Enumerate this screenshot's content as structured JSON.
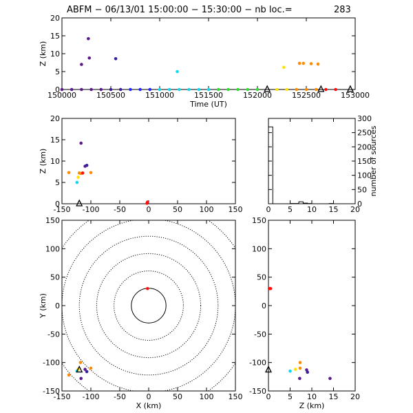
{
  "title": {
    "prefix": "ABFM − 06/13/01 15:00:00 − 15:30:00 − nb loc.=",
    "count": "283"
  },
  "colors": {
    "purple": "#5a1a8c",
    "indigo": "#3a1e9a",
    "blue": "#2424ff",
    "cyan": "#10d8f0",
    "green": "#30e030",
    "yellow": "#ffe000",
    "orange": "#ff8c00",
    "red": "#ff1010"
  },
  "chart_data": [
    {
      "id": "time-height",
      "type": "scatter",
      "xlabel": "Time (UT)",
      "ylabel": "Z (km)",
      "xlim": [
        150000,
        153000
      ],
      "ylim": [
        0,
        20
      ],
      "xticks": [
        150000,
        150500,
        151000,
        151500,
        152000,
        152500,
        153000
      ],
      "yticks": [
        0,
        5,
        10,
        15,
        20
      ],
      "points": [
        {
          "x": 150000,
          "y": 0,
          "c": "purple"
        },
        {
          "x": 150100,
          "y": 0,
          "c": "purple"
        },
        {
          "x": 150200,
          "y": 0,
          "c": "purple"
        },
        {
          "x": 150200,
          "y": 7,
          "c": "purple"
        },
        {
          "x": 150270,
          "y": 14.2,
          "c": "purple"
        },
        {
          "x": 150280,
          "y": 8.8,
          "c": "purple"
        },
        {
          "x": 150300,
          "y": 0,
          "c": "purple"
        },
        {
          "x": 150400,
          "y": 0,
          "c": "purple"
        },
        {
          "x": 150500,
          "y": 0,
          "c": "indigo"
        },
        {
          "x": 150550,
          "y": 8.6,
          "c": "indigo"
        },
        {
          "x": 150600,
          "y": 0,
          "c": "indigo"
        },
        {
          "x": 150700,
          "y": 0,
          "c": "blue"
        },
        {
          "x": 150800,
          "y": 0,
          "c": "blue"
        },
        {
          "x": 150900,
          "y": 0,
          "c": "blue"
        },
        {
          "x": 151000,
          "y": 0,
          "c": "cyan"
        },
        {
          "x": 151100,
          "y": 0,
          "c": "cyan"
        },
        {
          "x": 151180,
          "y": 5,
          "c": "cyan"
        },
        {
          "x": 151200,
          "y": 0,
          "c": "cyan"
        },
        {
          "x": 151300,
          "y": 0,
          "c": "cyan"
        },
        {
          "x": 151400,
          "y": 0,
          "c": "cyan"
        },
        {
          "x": 151500,
          "y": 0,
          "c": "cyan"
        },
        {
          "x": 151600,
          "y": 0,
          "c": "green"
        },
        {
          "x": 151700,
          "y": 0,
          "c": "green"
        },
        {
          "x": 151800,
          "y": 0,
          "c": "green"
        },
        {
          "x": 151900,
          "y": 0,
          "c": "green"
        },
        {
          "x": 152000,
          "y": 0,
          "c": "green"
        },
        {
          "x": 152200,
          "y": 0,
          "c": "yellow"
        },
        {
          "x": 152270,
          "y": 6.2,
          "c": "yellow"
        },
        {
          "x": 152300,
          "y": 0,
          "c": "yellow"
        },
        {
          "x": 152400,
          "y": 0,
          "c": "orange"
        },
        {
          "x": 152430,
          "y": 7.3,
          "c": "orange"
        },
        {
          "x": 152470,
          "y": 7.3,
          "c": "orange"
        },
        {
          "x": 152500,
          "y": 0,
          "c": "orange"
        },
        {
          "x": 152550,
          "y": 7.2,
          "c": "orange"
        },
        {
          "x": 152600,
          "y": 0,
          "c": "orange"
        },
        {
          "x": 152620,
          "y": 7.1,
          "c": "orange"
        },
        {
          "x": 152700,
          "y": 0,
          "c": "red"
        },
        {
          "x": 152800,
          "y": 0,
          "c": "red"
        }
      ],
      "triangles": [
        {
          "x": 152100,
          "y": 0
        },
        {
          "x": 152650,
          "y": 0
        },
        {
          "x": 152950,
          "y": 0
        }
      ]
    },
    {
      "id": "x-height",
      "type": "scatter",
      "xlabel": "",
      "ylabel": "Z (km)",
      "xlim": [
        -150,
        150
      ],
      "ylim": [
        0,
        20
      ],
      "xticks": [
        -150,
        -100,
        -50,
        0,
        50,
        100,
        150
      ],
      "yticks": [
        0,
        5,
        10,
        15,
        20
      ],
      "points": [
        {
          "x": -117,
          "y": 14.2,
          "c": "purple"
        },
        {
          "x": -110,
          "y": 8.8,
          "c": "purple"
        },
        {
          "x": -107,
          "y": 9.0,
          "c": "indigo"
        },
        {
          "x": -124,
          "y": 5,
          "c": "cyan"
        },
        {
          "x": -122,
          "y": 6.2,
          "c": "yellow"
        },
        {
          "x": -138,
          "y": 7.3,
          "c": "orange"
        },
        {
          "x": -120,
          "y": 7.2,
          "c": "orange"
        },
        {
          "x": -117,
          "y": 7.1,
          "c": "orange"
        },
        {
          "x": -100,
          "y": 7.3,
          "c": "orange"
        },
        {
          "x": -114,
          "y": 7.2,
          "c": "red"
        },
        {
          "x": -3,
          "y": 0.1,
          "c": "red"
        },
        {
          "x": -2,
          "y": 0.4,
          "c": "red"
        }
      ],
      "triangles": [
        {
          "x": -120,
          "y": 0
        }
      ]
    },
    {
      "id": "height-histogram",
      "type": "bar",
      "xlabel": "",
      "ylabel": "number of sources",
      "xlim": [
        0,
        20
      ],
      "ylim": [
        0,
        300
      ],
      "xticks": [
        0,
        5,
        10,
        15,
        20
      ],
      "yticks": [
        0,
        50,
        100,
        150,
        200,
        250,
        300
      ],
      "bin_width": 1,
      "bins_start": [
        0,
        1,
        2,
        3,
        4,
        5,
        6,
        7,
        8,
        9,
        10,
        11,
        12,
        13,
        14,
        15,
        16,
        17,
        18,
        19
      ],
      "values": [
        270,
        0,
        0,
        0,
        0,
        1,
        1,
        7,
        2,
        1,
        0,
        0,
        0,
        0,
        1,
        0,
        0,
        0,
        0,
        0
      ]
    },
    {
      "id": "plan-view",
      "type": "scatter",
      "xlabel": "X (km)",
      "ylabel": "Y (km)",
      "xlim": [
        -150,
        150
      ],
      "ylim": [
        -150,
        150
      ],
      "xticks": [
        -150,
        -100,
        -50,
        0,
        50,
        100,
        150
      ],
      "yticks": [
        -150,
        -100,
        -50,
        0,
        50,
        100,
        150
      ],
      "range_rings_km": [
        30,
        60,
        90,
        120,
        150,
        180,
        210
      ],
      "points": [
        {
          "x": -2,
          "y": 30,
          "c": "red"
        },
        {
          "x": -118,
          "y": -100,
          "c": "orange"
        },
        {
          "x": -138,
          "y": -122,
          "c": "orange"
        },
        {
          "x": -100,
          "y": -110,
          "c": "orange"
        },
        {
          "x": -122,
          "y": -112,
          "c": "yellow"
        },
        {
          "x": -124,
          "y": -115,
          "c": "cyan"
        },
        {
          "x": -117,
          "y": -128,
          "c": "purple"
        },
        {
          "x": -110,
          "y": -112,
          "c": "purple"
        },
        {
          "x": -107,
          "y": -116,
          "c": "indigo"
        }
      ],
      "triangles": [
        {
          "x": -120,
          "y": -113
        }
      ]
    },
    {
      "id": "height-y",
      "type": "scatter",
      "xlabel": "Z (km)",
      "ylabel": "",
      "xlim": [
        0,
        20
      ],
      "ylim": [
        -150,
        150
      ],
      "xticks": [
        0,
        5,
        10,
        15,
        20
      ],
      "yticks": [
        -150,
        -100,
        -50,
        0,
        50,
        100,
        150
      ],
      "points": [
        {
          "x": 0.2,
          "y": 30,
          "c": "red"
        },
        {
          "x": 0.5,
          "y": 30,
          "c": "red"
        },
        {
          "x": 7.3,
          "y": -100,
          "c": "orange"
        },
        {
          "x": 7.3,
          "y": -110,
          "c": "orange"
        },
        {
          "x": 6.2,
          "y": -112,
          "c": "yellow"
        },
        {
          "x": 5,
          "y": -115,
          "c": "cyan"
        },
        {
          "x": 7.2,
          "y": -128,
          "c": "purple"
        },
        {
          "x": 8.8,
          "y": -113,
          "c": "purple"
        },
        {
          "x": 9.0,
          "y": -117,
          "c": "indigo"
        },
        {
          "x": 14.2,
          "y": -128,
          "c": "purple"
        }
      ],
      "triangles": [
        {
          "x": 0,
          "y": -113
        }
      ]
    }
  ]
}
